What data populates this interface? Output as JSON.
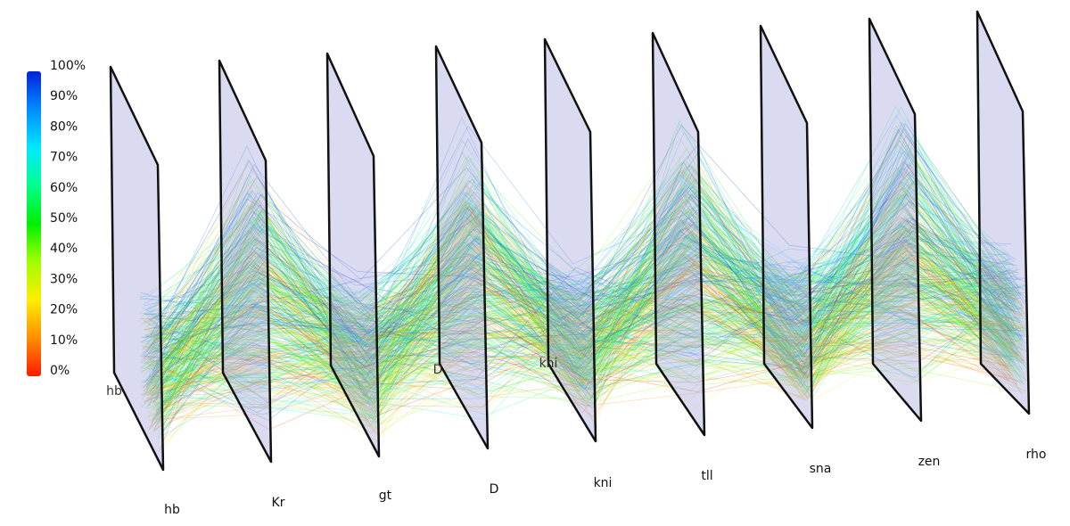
{
  "chart_data": {
    "type": "3d-parallel-coordinates",
    "title": "",
    "colorbar": {
      "ticks": [
        "0%",
        "10%",
        "20%",
        "30%",
        "40%",
        "50%",
        "60%",
        "70%",
        "80%",
        "90%",
        "100%"
      ],
      "colors": [
        "#ff0000",
        "#ff8000",
        "#ffff00",
        "#80ff00",
        "#00ff00",
        "#00ff80",
        "#00ffff",
        "#0080ff",
        "#0000ff"
      ]
    },
    "axes": [
      {
        "label": "hb"
      },
      {
        "label": "Kr"
      },
      {
        "label": "gt"
      },
      {
        "label": "D"
      },
      {
        "label": "kni"
      },
      {
        "label": "tll"
      },
      {
        "label": "sna"
      },
      {
        "label": "zen"
      },
      {
        "label": "rho"
      }
    ],
    "back_labels": [
      "hb",
      "D",
      "kni"
    ],
    "line_count_estimate": 2000,
    "grid": false,
    "legend": "left"
  }
}
